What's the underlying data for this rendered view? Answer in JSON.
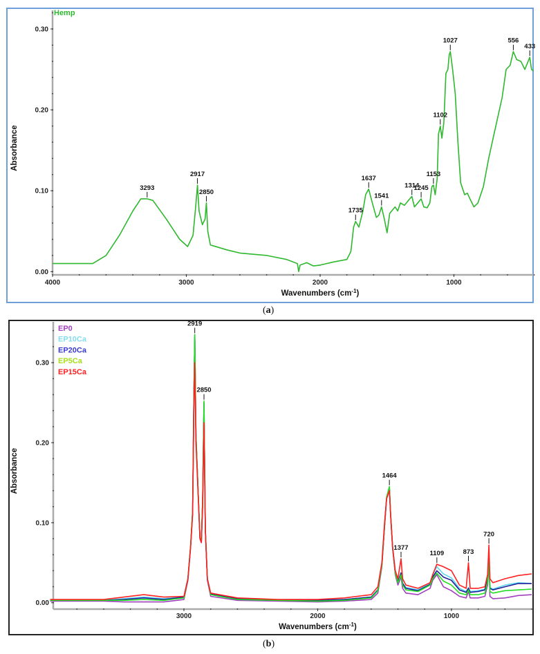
{
  "captions": {
    "a_open": "(",
    "a_letter": "a",
    "a_close": ")",
    "b_open": "(",
    "b_letter": "b",
    "b_close": ")"
  },
  "chart_data": [
    {
      "type": "line",
      "panel": "a",
      "ylabel": "Absorbance",
      "xlabel": "Wavenumbers (cm",
      "xlabel_sup": "-1",
      "xlabel_end": ")",
      "xlim": [
        4000,
        400
      ],
      "ylim": [
        -0.004,
        0.323
      ],
      "x_reversed": true,
      "xticks": [
        "4000",
        "3000",
        "2000",
        "1000"
      ],
      "yticks": [
        "0.00",
        "0.10",
        "0.20",
        "0.30"
      ],
      "frame_color": "#6f9fd8",
      "legend_placement": "top-left",
      "series": [
        {
          "name": "Hemp",
          "color": "#2db82d",
          "x": [
            4000,
            3700,
            3600,
            3500,
            3400,
            3340,
            3293,
            3250,
            3150,
            3050,
            2990,
            2950,
            2930,
            2917,
            2905,
            2880,
            2860,
            2850,
            2840,
            2820,
            2700,
            2600,
            2400,
            2250,
            2170,
            2160,
            2150,
            2100,
            2050,
            2000,
            1900,
            1800,
            1770,
            1750,
            1735,
            1710,
            1680,
            1660,
            1637,
            1610,
            1580,
            1560,
            1541,
            1520,
            1500,
            1480,
            1440,
            1420,
            1400,
            1370,
            1340,
            1314,
            1295,
            1270,
            1245,
            1225,
            1200,
            1180,
            1165,
            1153,
            1140,
            1125,
            1115,
            1102,
            1090,
            1075,
            1060,
            1045,
            1035,
            1027,
            1010,
            990,
            970,
            950,
            920,
            900,
            880,
            850,
            820,
            780,
            740,
            700,
            660,
            640,
            610,
            580,
            556,
            530,
            500,
            470,
            450,
            433,
            420,
            405
          ],
          "y": [
            0.01,
            0.01,
            0.02,
            0.045,
            0.075,
            0.09,
            0.09,
            0.088,
            0.065,
            0.04,
            0.031,
            0.045,
            0.08,
            0.107,
            0.075,
            0.058,
            0.065,
            0.085,
            0.05,
            0.033,
            0.027,
            0.023,
            0.02,
            0.015,
            0.01,
            0.0,
            0.008,
            0.011,
            0.007,
            0.008,
            0.012,
            0.015,
            0.025,
            0.055,
            0.062,
            0.055,
            0.075,
            0.095,
            0.102,
            0.085,
            0.067,
            0.07,
            0.08,
            0.065,
            0.048,
            0.072,
            0.08,
            0.075,
            0.085,
            0.082,
            0.088,
            0.093,
            0.08,
            0.085,
            0.09,
            0.08,
            0.079,
            0.085,
            0.105,
            0.107,
            0.095,
            0.115,
            0.17,
            0.18,
            0.165,
            0.185,
            0.245,
            0.25,
            0.268,
            0.272,
            0.25,
            0.22,
            0.16,
            0.11,
            0.095,
            0.097,
            0.09,
            0.08,
            0.085,
            0.105,
            0.14,
            0.17,
            0.2,
            0.215,
            0.25,
            0.255,
            0.272,
            0.262,
            0.26,
            0.25,
            0.258,
            0.265,
            0.25,
            0.248
          ]
        }
      ],
      "annotations": [
        "3293",
        "2917",
        "2850",
        "1735",
        "1637",
        "1541",
        "1314",
        "1245",
        "1153",
        "1102",
        "1027",
        "556",
        "433"
      ]
    },
    {
      "type": "line",
      "panel": "b",
      "ylabel": "Absorbance",
      "xlabel": "Wavenumbers (cm",
      "xlabel_sup": "-1",
      "xlabel_end": ")",
      "xlim": [
        3977,
        400
      ],
      "ylim": [
        -0.008,
        0.351
      ],
      "x_reversed": true,
      "xticks": [
        "3000",
        "2000",
        "1000"
      ],
      "yticks": [
        "0.00",
        "0.10",
        "0.20",
        "0.30"
      ],
      "frame_color": "#222222",
      "legend_placement": "top-left",
      "x": [
        4000,
        3600,
        3450,
        3300,
        3150,
        3000,
        2970,
        2950,
        2935,
        2925,
        2919,
        2910,
        2895,
        2880,
        2870,
        2860,
        2850,
        2840,
        2825,
        2800,
        2600,
        2300,
        2000,
        1800,
        1600,
        1550,
        1520,
        1500,
        1485,
        1464,
        1455,
        1440,
        1420,
        1400,
        1377,
        1365,
        1340,
        1250,
        1160,
        1140,
        1109,
        1060,
        1000,
        940,
        890,
        873,
        860,
        800,
        750,
        730,
        720,
        712,
        690,
        600,
        500,
        400
      ],
      "series": [
        {
          "name": "EP0",
          "color": "#a23fbf",
          "legend_color": "#a23fbf",
          "y": [
            0.002,
            0.002,
            0.001,
            0.001,
            0.001,
            0.004,
            0.028,
            0.07,
            0.115,
            0.265,
            0.335,
            0.21,
            0.145,
            0.08,
            0.075,
            0.13,
            0.25,
            0.09,
            0.028,
            0.008,
            0.003,
            0.002,
            0.001,
            0.002,
            0.004,
            0.012,
            0.045,
            0.095,
            0.13,
            0.145,
            0.11,
            0.068,
            0.035,
            0.022,
            0.032,
            0.018,
            0.012,
            0.01,
            0.018,
            0.028,
            0.035,
            0.02,
            0.015,
            0.008,
            0.006,
            0.014,
            0.006,
            0.006,
            0.008,
            0.022,
            0.048,
            0.008,
            0.005,
            0.006,
            0.009,
            0.01
          ]
        },
        {
          "name": "EP10Ca",
          "color": "#5fd6ee",
          "legend_color": "#86dcef",
          "y": [
            0.003,
            0.003,
            0.005,
            0.007,
            0.005,
            0.007,
            0.03,
            0.071,
            0.114,
            0.262,
            0.332,
            0.208,
            0.144,
            0.081,
            0.076,
            0.128,
            0.248,
            0.091,
            0.03,
            0.011,
            0.005,
            0.003,
            0.003,
            0.004,
            0.007,
            0.016,
            0.047,
            0.096,
            0.13,
            0.143,
            0.111,
            0.069,
            0.037,
            0.027,
            0.038,
            0.025,
            0.019,
            0.016,
            0.025,
            0.035,
            0.045,
            0.036,
            0.031,
            0.018,
            0.014,
            0.019,
            0.014,
            0.015,
            0.017,
            0.031,
            0.056,
            0.019,
            0.017,
            0.022,
            0.025,
            0.024
          ]
        },
        {
          "name": "EP20Ca",
          "color": "#1f1f9a",
          "legend_color": "#3a3ad0",
          "y": [
            0.003,
            0.003,
            0.004,
            0.006,
            0.004,
            0.007,
            0.03,
            0.071,
            0.114,
            0.262,
            0.332,
            0.208,
            0.144,
            0.081,
            0.076,
            0.128,
            0.248,
            0.091,
            0.03,
            0.011,
            0.005,
            0.003,
            0.003,
            0.004,
            0.007,
            0.016,
            0.047,
            0.096,
            0.13,
            0.143,
            0.111,
            0.069,
            0.037,
            0.026,
            0.037,
            0.024,
            0.018,
            0.015,
            0.023,
            0.032,
            0.04,
            0.032,
            0.028,
            0.016,
            0.013,
            0.018,
            0.013,
            0.014,
            0.016,
            0.03,
            0.055,
            0.018,
            0.016,
            0.02,
            0.024,
            0.024
          ]
        },
        {
          "name": "EP5Ca",
          "color": "#22dd22",
          "legend_color": "#a6e01a",
          "y": [
            0.003,
            0.003,
            0.003,
            0.004,
            0.003,
            0.006,
            0.03,
            0.072,
            0.115,
            0.265,
            0.335,
            0.21,
            0.145,
            0.082,
            0.077,
            0.13,
            0.252,
            0.092,
            0.03,
            0.01,
            0.004,
            0.003,
            0.002,
            0.003,
            0.006,
            0.015,
            0.047,
            0.097,
            0.132,
            0.145,
            0.112,
            0.07,
            0.037,
            0.025,
            0.035,
            0.022,
            0.016,
            0.014,
            0.022,
            0.03,
            0.037,
            0.027,
            0.022,
            0.012,
            0.01,
            0.016,
            0.01,
            0.01,
            0.012,
            0.026,
            0.052,
            0.014,
            0.012,
            0.015,
            0.016,
            0.017
          ]
        },
        {
          "name": "EP15Ca",
          "color": "#ff2020",
          "legend_color": "#ff2020",
          "y": [
            0.004,
            0.004,
            0.007,
            0.01,
            0.007,
            0.008,
            0.03,
            0.07,
            0.11,
            0.25,
            0.3,
            0.2,
            0.14,
            0.08,
            0.075,
            0.12,
            0.225,
            0.09,
            0.03,
            0.012,
            0.006,
            0.004,
            0.004,
            0.006,
            0.01,
            0.02,
            0.05,
            0.1,
            0.13,
            0.14,
            0.11,
            0.07,
            0.04,
            0.03,
            0.055,
            0.03,
            0.022,
            0.018,
            0.025,
            0.035,
            0.048,
            0.045,
            0.04,
            0.022,
            0.018,
            0.05,
            0.018,
            0.018,
            0.02,
            0.035,
            0.072,
            0.03,
            0.025,
            0.03,
            0.034,
            0.036
          ]
        }
      ],
      "draw_order": [
        "EP10Ca",
        "EP20Ca",
        "EP0",
        "EP5Ca",
        "EP15Ca"
      ],
      "annotations": [
        "2919",
        "2850",
        "1464",
        "1377",
        "1109",
        "873",
        "720"
      ]
    }
  ]
}
